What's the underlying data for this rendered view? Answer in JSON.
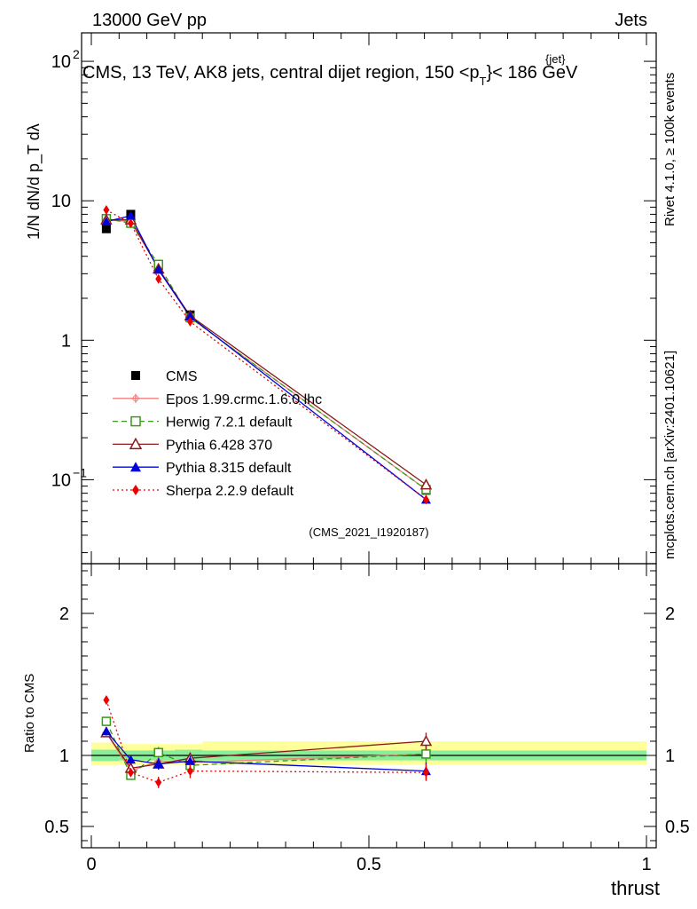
{
  "header": {
    "energy_label": "13000 GeV pp",
    "process_label": "Jets",
    "plot_title": "CMS, 13 TeV, AK8 jets, central dijet region, 150 <p",
    "title_sub": "T",
    "title_sup": "{jet}",
    "title_end": "}< 186 GeV",
    "rivet_label": "Rivet 4.1.0, ≥ 100k events",
    "mcplots_label": "mcplots.cern.ch [arXiv:2401.10621]",
    "analysis_id": "(CMS_2021_I1920187)"
  },
  "chart_data": [
    {
      "type": "line",
      "panel": "main",
      "log_y": true,
      "ylim": [
        0.025,
        160
      ],
      "xlim": [
        -0.02,
        1.02
      ],
      "ylabel": "1/N dN/d p_T dλ",
      "yticks": [
        {
          "value": 0.1,
          "label": "10",
          "sup": "−1"
        },
        {
          "value": 1,
          "label": "1",
          "sup": ""
        },
        {
          "value": 10,
          "label": "10",
          "sup": ""
        },
        {
          "value": 100,
          "label": "10",
          "sup": "2"
        }
      ],
      "x": [
        0.027,
        0.071,
        0.121,
        0.178,
        0.603
      ],
      "series": [
        {
          "name": "CMS",
          "style": "data",
          "color": "#000000",
          "marker": "square",
          "dash": "",
          "values": [
            6.3,
            8.0,
            3.45,
            1.52,
            0.084
          ]
        },
        {
          "name": "Epos 1.99.crmc.1.6.0 lhc",
          "style": "line",
          "color": "#f08080",
          "marker": "cross",
          "dash": "",
          "values": [
            7.3,
            7.1,
            3.3,
            1.45,
            0.085
          ]
        },
        {
          "name": "Herwig 7.2.1 default",
          "style": "line",
          "color": "#3a9a1a",
          "marker": "open-square",
          "dash": "6,4",
          "values": [
            7.45,
            6.9,
            3.5,
            1.45,
            0.085
          ]
        },
        {
          "name": "Pythia 6.428 370",
          "style": "line",
          "color": "#8b1a1a",
          "marker": "open-triangle",
          "dash": "",
          "values": [
            7.3,
            7.3,
            3.25,
            1.5,
            0.092
          ]
        },
        {
          "name": "Pythia 8.315 default",
          "style": "line",
          "color": "#0000dd",
          "marker": "triangle",
          "dash": "",
          "values": [
            7.1,
            7.8,
            3.2,
            1.48,
            0.072
          ]
        },
        {
          "name": "Sherpa 2.2.9 default",
          "style": "line",
          "color": "#ee0000",
          "marker": "diamond",
          "dash": "2,3",
          "values": [
            8.6,
            6.9,
            2.75,
            1.36,
            0.072
          ]
        }
      ]
    },
    {
      "type": "line",
      "panel": "ratio",
      "ylabel": "Ratio to CMS",
      "xlabel": "thrust",
      "ylim": [
        0.35,
        2.35
      ],
      "yticks": [
        {
          "value": 0.5,
          "label": "0.5"
        },
        {
          "value": 1,
          "label": "1"
        },
        {
          "value": 2,
          "label": "2"
        }
      ],
      "xticks": [
        {
          "value": 0,
          "label": "0"
        },
        {
          "value": 0.5,
          "label": "0.5"
        },
        {
          "value": 1,
          "label": "1"
        }
      ],
      "x": [
        0.027,
        0.071,
        0.121,
        0.178,
        0.603
      ],
      "band_inner": [
        {
          "x0": 0.0,
          "x1": 0.05,
          "lo": 0.96,
          "hi": 1.04
        },
        {
          "x0": 0.05,
          "x1": 0.15,
          "lo": 0.965,
          "hi": 1.035
        },
        {
          "x0": 0.15,
          "x1": 0.2,
          "lo": 0.96,
          "hi": 1.04
        },
        {
          "x0": 0.2,
          "x1": 1.0,
          "lo": 0.965,
          "hi": 1.035
        }
      ],
      "band_outer": [
        {
          "x0": 0.0,
          "x1": 0.05,
          "lo": 0.93,
          "hi": 1.09
        },
        {
          "x0": 0.05,
          "x1": 0.15,
          "lo": 0.935,
          "hi": 1.08
        },
        {
          "x0": 0.15,
          "x1": 0.2,
          "lo": 0.93,
          "hi": 1.08
        },
        {
          "x0": 0.2,
          "x1": 1.0,
          "lo": 0.935,
          "hi": 1.1
        }
      ],
      "series": [
        {
          "name": "Epos 1.99.crmc.1.6.0 lhc",
          "color": "#f08080",
          "marker": "cross",
          "dash": "",
          "values": [
            1.16,
            0.89,
            0.96,
            0.95,
            1.01
          ],
          "err": [
            0.03,
            0.03,
            0.04,
            0.04,
            0.06
          ]
        },
        {
          "name": "Herwig 7.2.1 default",
          "color": "#3a9a1a",
          "marker": "open-square",
          "dash": "6,4",
          "values": [
            1.24,
            0.86,
            1.02,
            0.93,
            1.01
          ],
          "err": [
            0.03,
            0.03,
            0.04,
            0.04,
            0.06
          ]
        },
        {
          "name": "Pythia 6.428 370",
          "color": "#8b1a1a",
          "marker": "open-triangle",
          "dash": "",
          "values": [
            1.16,
            0.91,
            0.94,
            0.98,
            1.1
          ],
          "err": [
            0.03,
            0.03,
            0.04,
            0.04,
            0.06
          ]
        },
        {
          "name": "Pythia 8.315 default",
          "color": "#0000dd",
          "marker": "triangle",
          "dash": "",
          "values": [
            1.17,
            0.97,
            0.94,
            0.96,
            0.89
          ],
          "err": [
            0.03,
            0.03,
            0.04,
            0.04,
            0.06
          ]
        },
        {
          "name": "Sherpa 2.2.9 default",
          "color": "#ee0000",
          "marker": "diamond",
          "dash": "2,3",
          "values": [
            1.39,
            0.88,
            0.81,
            0.89,
            0.88
          ],
          "err": [
            0.03,
            0.03,
            0.04,
            0.05,
            0.06
          ]
        }
      ]
    }
  ]
}
